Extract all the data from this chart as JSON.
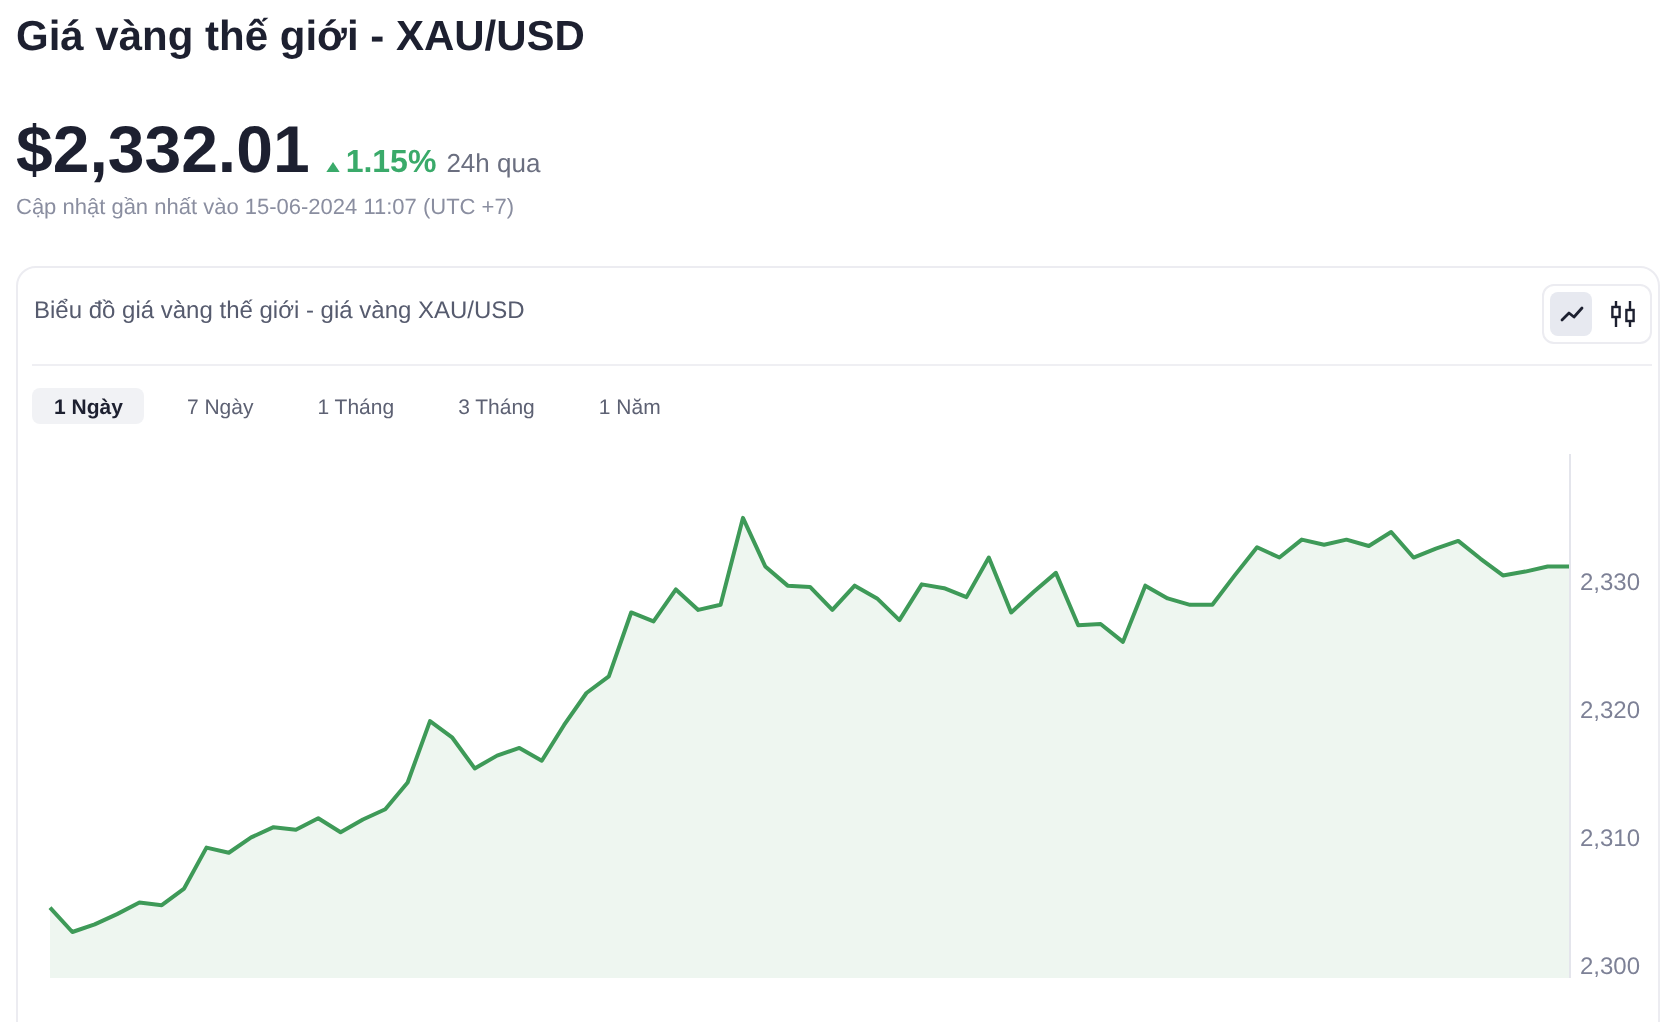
{
  "chart_data": {
    "type": "area",
    "title": "Giá vàng thế giới - XAU/USD",
    "subtitle": "Biểu đồ giá vàng thế giới - giá vàng XAU/USD",
    "annotations": [
      "$2,332.01",
      "1.15%",
      "24h qua",
      "Cập nhật gần nhất vào 15-06-2024 11:07 (UTC +7)",
      "1 Ngày",
      "7 Ngày",
      "1 Tháng",
      "3 Tháng",
      "1 Năm"
    ],
    "categories": [
      null,
      null,
      null,
      null,
      null,
      null,
      null,
      null,
      null,
      null,
      null,
      null,
      null,
      null,
      null,
      null,
      null,
      null,
      null,
      null,
      null,
      null,
      null,
      null,
      null,
      null,
      null,
      null,
      null,
      null,
      null,
      null,
      null,
      null,
      null,
      null,
      null,
      null,
      null,
      null,
      null,
      null,
      null,
      null,
      null,
      null,
      null,
      null,
      null,
      null,
      null,
      null,
      null,
      null,
      null,
      null,
      null,
      null,
      null,
      null,
      null,
      null,
      null,
      null,
      null,
      null,
      null,
      null,
      null
    ],
    "series": [
      {
        "color": "#3e9a58",
        "values": [
          2304.5,
          2302.6,
          2303.2,
          2304.0,
          2304.9,
          2304.7,
          2306.0,
          2309.2,
          2308.8,
          2310.0,
          2310.8,
          2310.6,
          2311.5,
          2310.4,
          2311.4,
          2312.2,
          2314.3,
          2319.1,
          2317.8,
          2315.4,
          2316.4,
          2317.0,
          2316.0,
          2318.8,
          2321.3,
          2322.6,
          2327.6,
          2326.9,
          2329.4,
          2327.8,
          2328.2,
          2335.0,
          2331.2,
          2329.7,
          2329.6,
          2327.8,
          2329.7,
          2328.7,
          2327.0,
          2329.8,
          2329.5,
          2328.8,
          2331.9,
          2327.6,
          2329.2,
          2330.7,
          2326.6,
          2326.7,
          2325.3,
          2329.7,
          2328.7,
          2328.2,
          2328.2,
          2330.5,
          2332.7,
          2331.9,
          2333.3,
          2332.9,
          2333.3,
          2332.8,
          2333.9,
          2331.9,
          2332.6,
          2333.2,
          2331.8,
          2330.5,
          2330.8,
          2331.2,
          2331.2
        ]
      }
    ],
    "ylim": [
      2299,
      2340
    ],
    "yticks": [
      {
        "value": 2300,
        "label": "2,300"
      },
      {
        "value": 2310,
        "label": "2,310"
      },
      {
        "value": 2320,
        "label": "2,320"
      },
      {
        "value": 2330,
        "label": "2,330"
      }
    ],
    "tick_labels": "y"
  }
}
